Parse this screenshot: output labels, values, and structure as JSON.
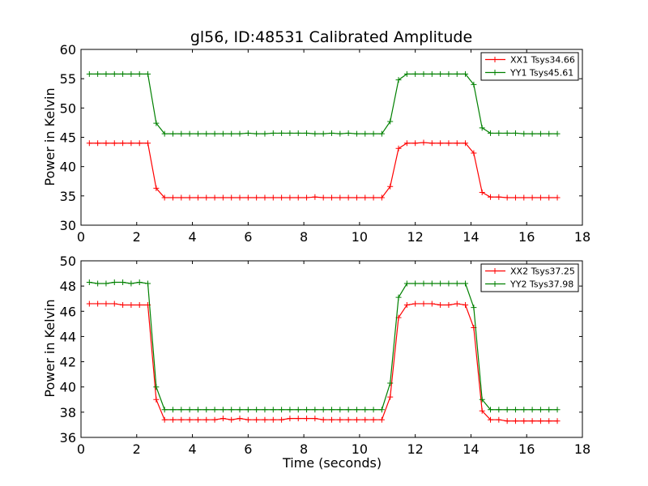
{
  "chart_data": [
    {
      "type": "line",
      "title": "gl56, ID:48531 Calibrated Amplitude",
      "xlabel": "",
      "ylabel": "Power in Kelvin",
      "xlim": [
        0,
        18
      ],
      "ylim": [
        30,
        60
      ],
      "xticks": [
        "0",
        "2",
        "4",
        "6",
        "8",
        "10",
        "12",
        "14",
        "16",
        "18"
      ],
      "yticks": [
        "30",
        "35",
        "40",
        "45",
        "50",
        "55",
        "60"
      ],
      "grid": false,
      "legend_position": "top-right",
      "x": [
        0.3,
        0.6,
        0.9,
        1.2,
        1.5,
        1.8,
        2.1,
        2.4,
        2.7,
        3.0,
        3.3,
        3.6,
        3.9,
        4.2,
        4.5,
        4.8,
        5.1,
        5.4,
        5.7,
        6.0,
        6.3,
        6.6,
        6.9,
        7.2,
        7.5,
        7.8,
        8.1,
        8.4,
        8.7,
        9.0,
        9.3,
        9.6,
        9.9,
        10.2,
        10.5,
        10.8,
        11.1,
        11.4,
        11.7,
        12.0,
        12.3,
        12.6,
        12.9,
        13.2,
        13.5,
        13.8,
        14.1,
        14.4,
        14.7,
        15.0,
        15.3,
        15.6,
        15.9,
        16.2,
        16.5,
        16.8,
        17.1
      ],
      "series": [
        {
          "name": "XX1 Tsys34.66",
          "color": "#ff0000",
          "values": [
            44.0,
            44.0,
            44.0,
            44.0,
            44.0,
            44.0,
            44.0,
            44.0,
            36.3,
            34.7,
            34.7,
            34.7,
            34.7,
            34.7,
            34.7,
            34.7,
            34.7,
            34.7,
            34.7,
            34.7,
            34.7,
            34.7,
            34.7,
            34.7,
            34.7,
            34.7,
            34.7,
            34.8,
            34.7,
            34.7,
            34.7,
            34.7,
            34.7,
            34.7,
            34.7,
            34.7,
            36.6,
            43.1,
            44.0,
            44.0,
            44.1,
            44.0,
            44.0,
            44.0,
            44.0,
            44.0,
            42.3,
            35.6,
            34.8,
            34.8,
            34.7,
            34.7,
            34.7,
            34.7,
            34.7,
            34.7,
            34.7
          ]
        },
        {
          "name": "YY1 Tsys45.61",
          "color": "#008000",
          "values": [
            55.8,
            55.8,
            55.8,
            55.8,
            55.8,
            55.8,
            55.8,
            55.8,
            47.4,
            45.6,
            45.6,
            45.6,
            45.6,
            45.6,
            45.6,
            45.6,
            45.6,
            45.6,
            45.6,
            45.7,
            45.6,
            45.6,
            45.7,
            45.7,
            45.7,
            45.7,
            45.7,
            45.6,
            45.6,
            45.7,
            45.6,
            45.7,
            45.6,
            45.6,
            45.6,
            45.6,
            47.7,
            54.8,
            55.8,
            55.8,
            55.8,
            55.8,
            55.8,
            55.8,
            55.8,
            55.8,
            54.0,
            46.6,
            45.7,
            45.7,
            45.7,
            45.7,
            45.6,
            45.6,
            45.6,
            45.6,
            45.6
          ]
        }
      ]
    },
    {
      "type": "line",
      "title": "",
      "xlabel": "Time (seconds)",
      "ylabel": "Power in Kelvin",
      "xlim": [
        0,
        18
      ],
      "ylim": [
        36,
        50
      ],
      "xticks": [
        "0",
        "2",
        "4",
        "6",
        "8",
        "10",
        "12",
        "14",
        "16",
        "18"
      ],
      "yticks": [
        "36",
        "38",
        "40",
        "42",
        "44",
        "46",
        "48",
        "50"
      ],
      "grid": false,
      "legend_position": "top-right",
      "x": [
        0.3,
        0.6,
        0.9,
        1.2,
        1.5,
        1.8,
        2.1,
        2.4,
        2.7,
        3.0,
        3.3,
        3.6,
        3.9,
        4.2,
        4.5,
        4.8,
        5.1,
        5.4,
        5.7,
        6.0,
        6.3,
        6.6,
        6.9,
        7.2,
        7.5,
        7.8,
        8.1,
        8.4,
        8.7,
        9.0,
        9.3,
        9.6,
        9.9,
        10.2,
        10.5,
        10.8,
        11.1,
        11.4,
        11.7,
        12.0,
        12.3,
        12.6,
        12.9,
        13.2,
        13.5,
        13.8,
        14.1,
        14.4,
        14.7,
        15.0,
        15.3,
        15.6,
        15.9,
        16.2,
        16.5,
        16.8,
        17.1
      ],
      "series": [
        {
          "name": "XX2 Tsys37.25",
          "color": "#ff0000",
          "values": [
            46.6,
            46.6,
            46.6,
            46.6,
            46.5,
            46.5,
            46.5,
            46.5,
            39.0,
            37.4,
            37.4,
            37.4,
            37.4,
            37.4,
            37.4,
            37.4,
            37.5,
            37.4,
            37.5,
            37.4,
            37.4,
            37.4,
            37.4,
            37.4,
            37.5,
            37.5,
            37.5,
            37.5,
            37.4,
            37.4,
            37.4,
            37.4,
            37.4,
            37.4,
            37.4,
            37.4,
            39.2,
            45.5,
            46.5,
            46.6,
            46.6,
            46.6,
            46.5,
            46.5,
            46.6,
            46.5,
            44.7,
            38.1,
            37.4,
            37.4,
            37.3,
            37.3,
            37.3,
            37.3,
            37.3,
            37.3,
            37.3
          ]
        },
        {
          "name": "YY2 Tsys37.98",
          "color": "#008000",
          "values": [
            48.3,
            48.2,
            48.2,
            48.3,
            48.3,
            48.2,
            48.3,
            48.2,
            40.0,
            38.2,
            38.2,
            38.2,
            38.2,
            38.2,
            38.2,
            38.2,
            38.2,
            38.2,
            38.2,
            38.2,
            38.2,
            38.2,
            38.2,
            38.2,
            38.2,
            38.2,
            38.2,
            38.2,
            38.2,
            38.2,
            38.2,
            38.2,
            38.2,
            38.2,
            38.2,
            38.2,
            40.3,
            47.1,
            48.2,
            48.2,
            48.2,
            48.2,
            48.2,
            48.2,
            48.2,
            48.2,
            46.3,
            39.0,
            38.2,
            38.2,
            38.2,
            38.2,
            38.2,
            38.2,
            38.2,
            38.2,
            38.2
          ]
        }
      ]
    }
  ]
}
